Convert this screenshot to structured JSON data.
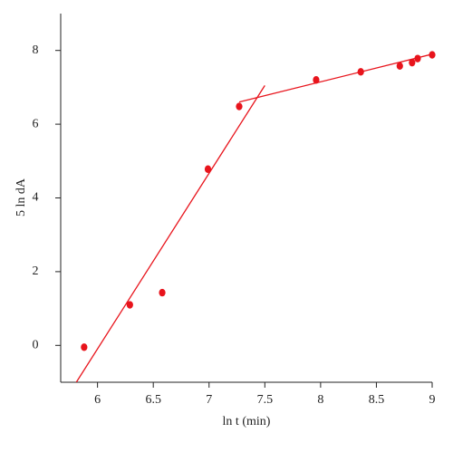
{
  "chart_data": {
    "type": "scatter",
    "x_label": "ln t (min)",
    "y_label": "5 ln dA",
    "xlim": [
      5.67,
      9
    ],
    "ylim": [
      -1,
      9
    ],
    "xticks": [
      6,
      6.5,
      7,
      7.5,
      8,
      8.5,
      9
    ],
    "yticks": [
      0,
      2,
      4,
      6,
      8
    ],
    "series": [
      {
        "color": "#e8141c",
        "x": [
          5.88,
          6.29,
          6.58,
          6.99,
          7.27,
          7.96,
          8.36,
          8.71,
          8.82,
          8.87,
          9.0
        ],
        "values": [
          -0.05,
          1.1,
          1.43,
          4.78,
          6.48,
          7.2,
          7.42,
          7.58,
          7.67,
          7.78,
          7.88
        ]
      }
    ],
    "fit_lines": [
      {
        "color": "#e8141c",
        "x": [
          5.81,
          7.5
        ],
        "values": [
          -1,
          7.05
        ]
      },
      {
        "color": "#e8141c",
        "x": [
          7.27,
          9
        ],
        "values": [
          6.6,
          7.9
        ]
      }
    ]
  }
}
